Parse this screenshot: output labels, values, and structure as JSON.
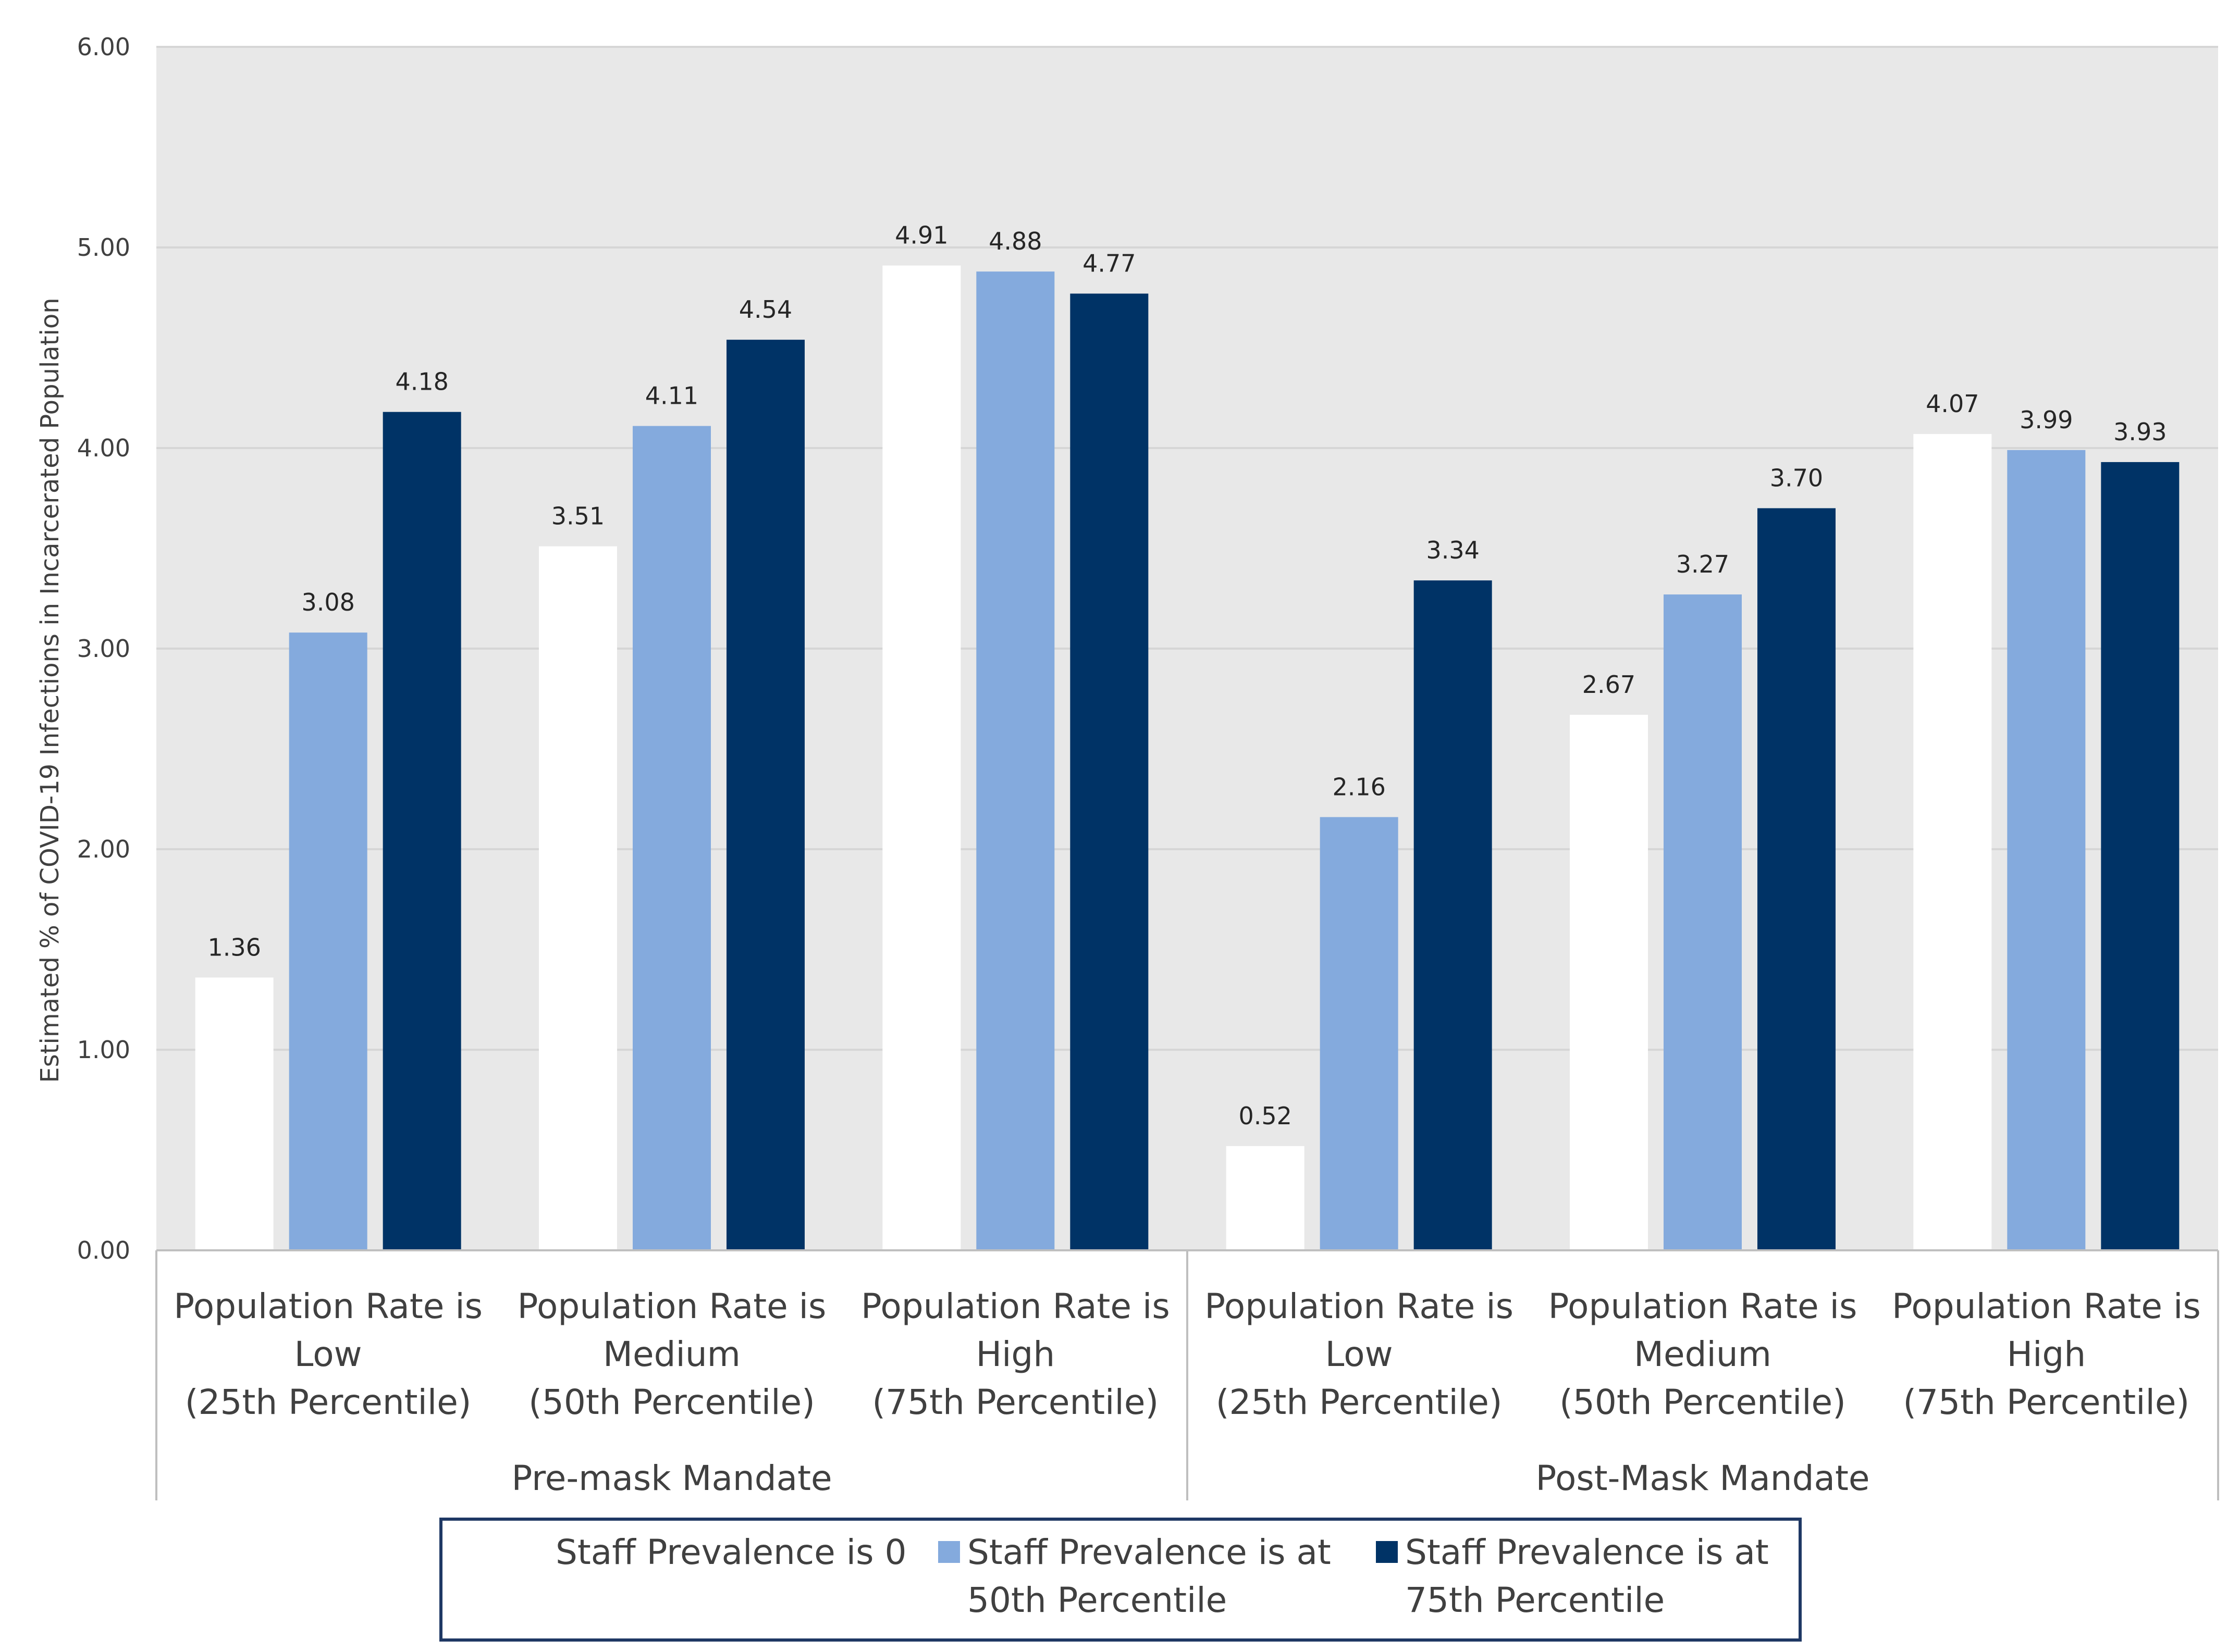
{
  "chart_data": {
    "type": "bar",
    "title": "",
    "xlabel": "",
    "ylabel": "Estimated % of COVID-19 Infections in Incarcerated Population",
    "ylim": [
      0,
      6
    ],
    "yticks": [
      "0.00",
      "1.00",
      "2.00",
      "3.00",
      "4.00",
      "5.00",
      "6.00"
    ],
    "grid": true,
    "legend_position": "bottom",
    "groups": [
      {
        "label": "Pre-mask Mandate",
        "categories": [
          [
            "Population Rate is",
            "Low",
            "(25th Percentile)"
          ],
          [
            "Population Rate is",
            "Medium",
            "(50th Percentile)"
          ],
          [
            "Population Rate is",
            "High",
            "(75th Percentile)"
          ]
        ]
      },
      {
        "label": "Post-Mask Mandate",
        "categories": [
          [
            "Population Rate is",
            "Low",
            "(25th Percentile)"
          ],
          [
            "Population Rate is",
            "Medium",
            "(50th Percentile)"
          ],
          [
            "Population Rate is",
            "High",
            "(75th Percentile)"
          ]
        ]
      }
    ],
    "series": [
      {
        "name": "Staff Prevalence is 0",
        "legend_lines": [
          "Staff Prevalence is 0"
        ],
        "color": "#ffffff",
        "values": [
          1.36,
          3.51,
          4.91,
          0.52,
          2.67,
          4.07
        ],
        "labels": [
          "1.36",
          "3.51",
          "4.91",
          "0.52",
          "2.67",
          "4.07"
        ]
      },
      {
        "name": "Staff Prevalence is at 50th Percentile",
        "legend_lines": [
          "Staff Prevalence is at",
          "50th Percentile"
        ],
        "color": "#84aadd",
        "values": [
          3.08,
          4.11,
          4.88,
          2.16,
          3.27,
          3.99
        ],
        "labels": [
          "3.08",
          "4.11",
          "4.88",
          "2.16",
          "3.27",
          "3.99"
        ]
      },
      {
        "name": "Staff Prevalence is at 75th Percentile",
        "legend_lines": [
          "Staff Prevalence is at",
          "75th Percentile"
        ],
        "color": "#003366",
        "values": [
          4.18,
          4.54,
          4.77,
          3.34,
          3.7,
          3.93
        ],
        "labels": [
          "4.18",
          "4.54",
          "4.77",
          "3.34",
          "3.70",
          "3.93"
        ]
      }
    ]
  },
  "colors": {
    "plot_background": "#e8e8e8",
    "gridline": "#d6d6d6",
    "axis_line": "#bfbfbf",
    "legend_border": "#1f3864"
  }
}
